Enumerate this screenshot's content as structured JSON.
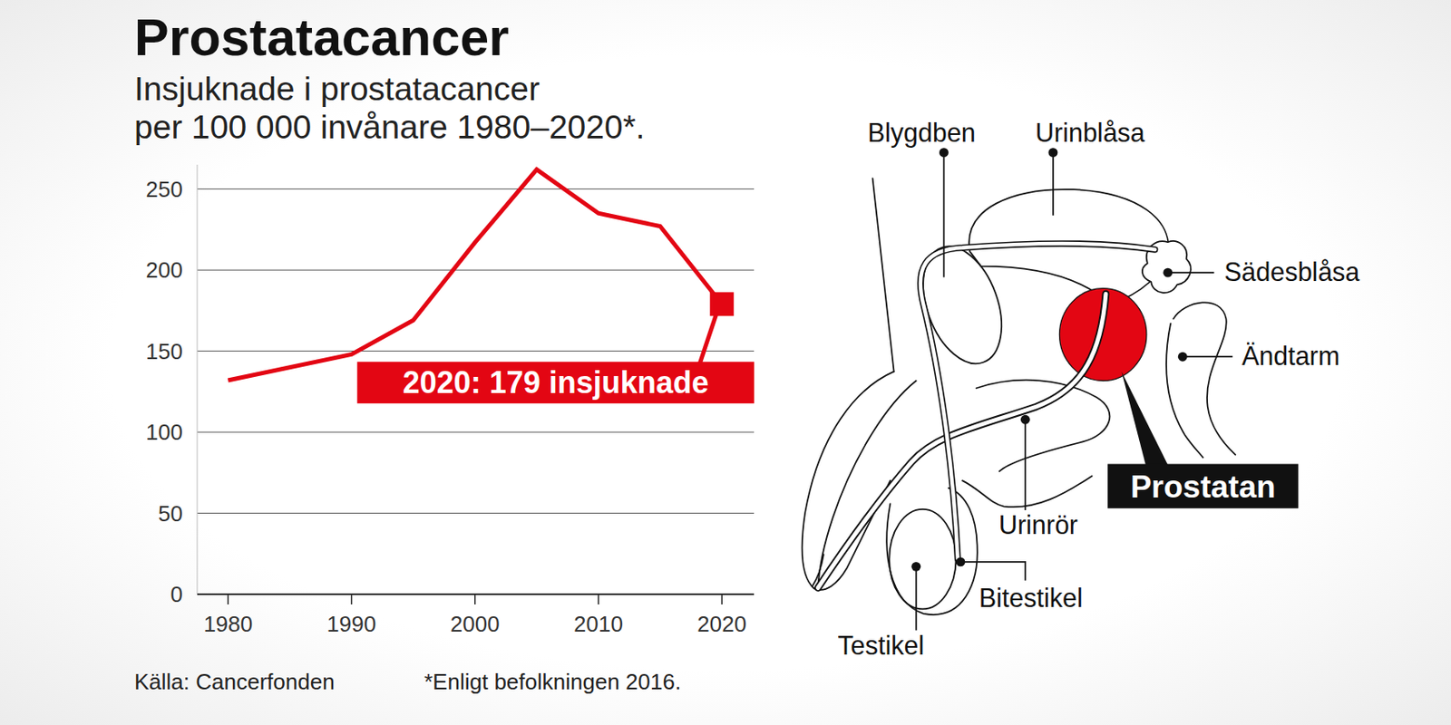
{
  "chart_data": {
    "type": "line",
    "title": "Prostatacancer",
    "subtitle": [
      "Insjuknade i prostatacancer",
      "per 100 000 invånare 1980–2020*."
    ],
    "x": [
      1980,
      1990,
      1995,
      2000,
      2005,
      2010,
      2015,
      2020
    ],
    "values": [
      132,
      148,
      169,
      217,
      262,
      235,
      227,
      179
    ],
    "color": "#e30613",
    "marker": "square",
    "annotation": "2020: 179 insjuknade",
    "xlim": [
      1977.5,
      2022.6
    ],
    "xticks": [
      1980,
      1990,
      2000,
      2010,
      2020
    ],
    "ylim": [
      0,
      265
    ],
    "yticks": [
      0,
      50,
      100,
      150,
      200,
      250
    ],
    "grid": true,
    "source": "Källa: Cancerfonden",
    "footnote": "*Enligt befolkningen 2016."
  },
  "diagram": {
    "labels": [
      "Blygdben",
      "Urinblåsa",
      "Sädesblåsa",
      "Ändtarm",
      "Urinrör",
      "Bitestikel",
      "Testikel"
    ],
    "highlight": "Prostatan"
  }
}
